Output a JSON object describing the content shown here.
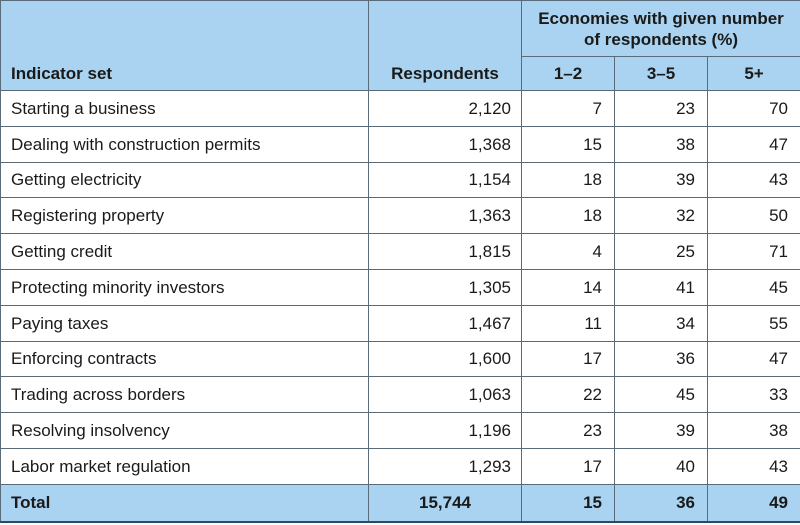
{
  "header": {
    "indicator_set": "Indicator set",
    "respondents": "Respondents",
    "group_title": "Economies with given number of respondents (%)",
    "bins": [
      "1–2",
      "3–5",
      "5+"
    ]
  },
  "rows": [
    {
      "name": "Starting a business",
      "respondents": "2,120",
      "b1": "7",
      "b2": "23",
      "b3": "70"
    },
    {
      "name": "Dealing with construction permits",
      "respondents": "1,368",
      "b1": "15",
      "b2": "38",
      "b3": "47"
    },
    {
      "name": "Getting electricity",
      "respondents": "1,154",
      "b1": "18",
      "b2": "39",
      "b3": "43"
    },
    {
      "name": "Registering property",
      "respondents": "1,363",
      "b1": "18",
      "b2": "32",
      "b3": "50"
    },
    {
      "name": "Getting credit",
      "respondents": "1,815",
      "b1": "4",
      "b2": "25",
      "b3": "71"
    },
    {
      "name": "Protecting minority investors",
      "respondents": "1,305",
      "b1": "14",
      "b2": "41",
      "b3": "45"
    },
    {
      "name": "Paying taxes",
      "respondents": "1,467",
      "b1": "11",
      "b2": "34",
      "b3": "55"
    },
    {
      "name": "Enforcing contracts",
      "respondents": "1,600",
      "b1": "17",
      "b2": "36",
      "b3": "47"
    },
    {
      "name": "Trading across borders",
      "respondents": "1,063",
      "b1": "22",
      "b2": "45",
      "b3": "33"
    },
    {
      "name": "Resolving insolvency",
      "respondents": "1,196",
      "b1": "23",
      "b2": "39",
      "b3": "38"
    },
    {
      "name": "Labor market regulation",
      "respondents": "1,293",
      "b1": "17",
      "b2": "40",
      "b3": "43"
    }
  ],
  "total": {
    "name": "Total",
    "respondents": "15,744",
    "b1": "15",
    "b2": "36",
    "b3": "49"
  },
  "colors": {
    "header_bg": "#a9d3f0",
    "border": "#5a6b7a"
  }
}
